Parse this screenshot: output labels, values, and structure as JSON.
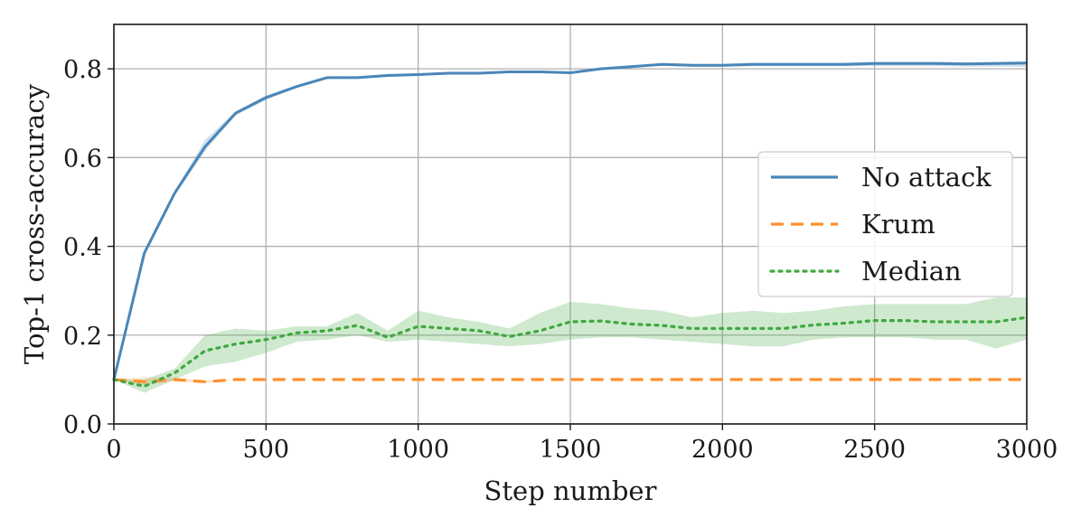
{
  "chart_data": {
    "type": "line",
    "xlabel": "Step number",
    "ylabel": "Top-1 cross-accuracy",
    "xlim": [
      0,
      3000
    ],
    "ylim": [
      0,
      0.9
    ],
    "xticks": [
      0,
      500,
      1000,
      1500,
      2000,
      2500,
      3000
    ],
    "xtick_labels": [
      "0",
      "500",
      "1000",
      "1500",
      "2000",
      "2500",
      "3000"
    ],
    "yticks": [
      0.0,
      0.2,
      0.4,
      0.6,
      0.8
    ],
    "ytick_labels": [
      "0.0",
      "0.2",
      "0.4",
      "0.6",
      "0.8"
    ],
    "grid": true,
    "legend_position": "center-right",
    "series": [
      {
        "name": "No attack",
        "color": "#4a86b8",
        "style": "solid",
        "x": [
          0,
          100,
          200,
          300,
          400,
          500,
          600,
          700,
          800,
          900,
          1000,
          1100,
          1200,
          1300,
          1400,
          1500,
          1600,
          1700,
          1800,
          1900,
          2000,
          2100,
          2200,
          2300,
          2400,
          2500,
          2600,
          2700,
          2800,
          2900,
          3000
        ],
        "y": [
          0.1,
          0.385,
          0.52,
          0.625,
          0.7,
          0.735,
          0.76,
          0.78,
          0.78,
          0.785,
          0.787,
          0.79,
          0.79,
          0.793,
          0.793,
          0.791,
          0.8,
          0.805,
          0.81,
          0.808,
          0.808,
          0.81,
          0.81,
          0.81,
          0.81,
          0.812,
          0.812,
          0.812,
          0.811,
          0.812,
          0.813
        ],
        "band_low": [
          0.1,
          0.38,
          0.515,
          0.615,
          0.695,
          0.73,
          0.757,
          0.777,
          0.778,
          0.783,
          0.785,
          0.788,
          0.787,
          0.791,
          0.791,
          0.789,
          0.798,
          0.803,
          0.807,
          0.805,
          0.805,
          0.806,
          0.806,
          0.806,
          0.806,
          0.806,
          0.806,
          0.806,
          0.805,
          0.805,
          0.805
        ],
        "band_high": [
          0.1,
          0.39,
          0.525,
          0.64,
          0.705,
          0.74,
          0.763,
          0.783,
          0.782,
          0.787,
          0.789,
          0.792,
          0.793,
          0.795,
          0.795,
          0.793,
          0.802,
          0.807,
          0.813,
          0.811,
          0.811,
          0.814,
          0.814,
          0.814,
          0.814,
          0.816,
          0.816,
          0.816,
          0.815,
          0.816,
          0.817
        ]
      },
      {
        "name": "Krum",
        "color": "#ff8f2e",
        "style": "dashed",
        "x": [
          0,
          100,
          200,
          300,
          400,
          500,
          600,
          700,
          800,
          900,
          1000,
          1100,
          1200,
          1300,
          1400,
          1500,
          1600,
          1700,
          1800,
          1900,
          2000,
          2100,
          2200,
          2300,
          2400,
          2500,
          2600,
          2700,
          2800,
          2900,
          3000
        ],
        "y": [
          0.1,
          0.095,
          0.1,
          0.095,
          0.1,
          0.1,
          0.1,
          0.1,
          0.1,
          0.1,
          0.1,
          0.1,
          0.1,
          0.1,
          0.1,
          0.1,
          0.1,
          0.1,
          0.1,
          0.1,
          0.1,
          0.1,
          0.1,
          0.1,
          0.1,
          0.1,
          0.1,
          0.1,
          0.1,
          0.1,
          0.1
        ],
        "band_low": [
          0.1,
          0.088,
          0.096,
          0.092,
          0.1,
          0.1,
          0.1,
          0.1,
          0.1,
          0.1,
          0.1,
          0.1,
          0.1,
          0.1,
          0.1,
          0.1,
          0.1,
          0.1,
          0.1,
          0.1,
          0.1,
          0.1,
          0.1,
          0.1,
          0.1,
          0.1,
          0.1,
          0.1,
          0.1,
          0.1,
          0.1
        ],
        "band_high": [
          0.1,
          0.105,
          0.104,
          0.098,
          0.1,
          0.1,
          0.1,
          0.1,
          0.1,
          0.1,
          0.1,
          0.1,
          0.1,
          0.1,
          0.1,
          0.1,
          0.1,
          0.1,
          0.1,
          0.1,
          0.1,
          0.1,
          0.1,
          0.1,
          0.1,
          0.1,
          0.1,
          0.1,
          0.1,
          0.1,
          0.1
        ]
      },
      {
        "name": "Median",
        "color": "#3fa83f",
        "style": "dotted",
        "x": [
          0,
          100,
          200,
          300,
          400,
          500,
          600,
          700,
          800,
          900,
          1000,
          1100,
          1200,
          1300,
          1400,
          1500,
          1600,
          1700,
          1800,
          1900,
          2000,
          2100,
          2200,
          2300,
          2400,
          2500,
          2600,
          2700,
          2800,
          2900,
          3000
        ],
        "y": [
          0.1,
          0.085,
          0.115,
          0.165,
          0.18,
          0.19,
          0.205,
          0.21,
          0.222,
          0.195,
          0.22,
          0.215,
          0.21,
          0.197,
          0.21,
          0.23,
          0.232,
          0.225,
          0.222,
          0.215,
          0.215,
          0.215,
          0.215,
          0.223,
          0.227,
          0.233,
          0.233,
          0.23,
          0.23,
          0.23,
          0.24
        ],
        "band_low": [
          0.1,
          0.07,
          0.1,
          0.13,
          0.14,
          0.16,
          0.185,
          0.19,
          0.2,
          0.185,
          0.19,
          0.185,
          0.18,
          0.175,
          0.18,
          0.19,
          0.195,
          0.195,
          0.19,
          0.185,
          0.18,
          0.175,
          0.175,
          0.19,
          0.195,
          0.195,
          0.195,
          0.19,
          0.19,
          0.17,
          0.19
        ],
        "band_high": [
          0.1,
          0.1,
          0.125,
          0.2,
          0.215,
          0.21,
          0.22,
          0.22,
          0.25,
          0.21,
          0.255,
          0.24,
          0.23,
          0.215,
          0.25,
          0.275,
          0.27,
          0.26,
          0.255,
          0.24,
          0.25,
          0.255,
          0.25,
          0.255,
          0.265,
          0.27,
          0.27,
          0.27,
          0.27,
          0.285,
          0.285
        ]
      }
    ]
  }
}
